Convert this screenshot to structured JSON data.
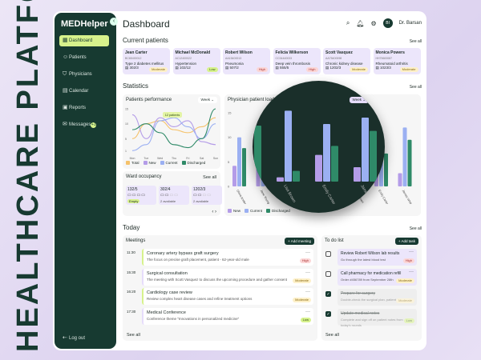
{
  "headline": "HEALTHCARE PLATFORM",
  "app": {
    "name": "MEDHelper"
  },
  "sidebar": {
    "items": [
      {
        "label": "Dashboard",
        "icon": "grid-icon",
        "active": true
      },
      {
        "label": "Patients",
        "icon": "users-icon"
      },
      {
        "label": "Physicians",
        "icon": "shield-icon"
      },
      {
        "label": "Calendar",
        "icon": "calendar-icon"
      },
      {
        "label": "Reports",
        "icon": "report-icon"
      },
      {
        "label": "Messages",
        "icon": "message-icon",
        "badge": "+1"
      }
    ],
    "logout": "Log out"
  },
  "header": {
    "title": "Dashboard",
    "user_initials": "BI",
    "user_name": "Dr. Barsan"
  },
  "current_patients": {
    "title": "Current patients",
    "see_all": "See all",
    "items": [
      {
        "name": "Jean Carter",
        "id": "BC65400012",
        "diagnosis": "Type 2 diabetes mellitus",
        "room": "302/3",
        "severity": "Moderate"
      },
      {
        "name": "Michael McDonald",
        "id": "AC12400022",
        "diagnosis": "Hypertension",
        "room": "102/12",
        "severity": "Low"
      },
      {
        "name": "Robert Wilson",
        "id": "AA15400013",
        "diagnosis": "Pneumonia",
        "room": "507/2",
        "severity": "High"
      },
      {
        "name": "Felicia Wilkerson",
        "id": "CC34440033",
        "diagnosis": "Deep vein thrombosis",
        "room": "555/5",
        "severity": "High"
      },
      {
        "name": "Scott Vasquez",
        "id": "AA75400098",
        "diagnosis": "Chronic kidney disease",
        "room": "1202/3",
        "severity": "Moderate"
      },
      {
        "name": "Monica Powers",
        "id": "HH75600087",
        "diagnosis": "Rheumatoid arthritis",
        "room": "1023/3",
        "severity": "Moderate"
      }
    ]
  },
  "statistics": {
    "title": "Statistics",
    "see_all": "See all"
  },
  "chart_data": [
    {
      "type": "line",
      "title": "Patients performance",
      "period": "Week",
      "categories": [
        "Mon",
        "Tue",
        "Wed",
        "Thu",
        "Fri",
        "Sat",
        "Sun"
      ],
      "ylim": [
        0,
        15
      ],
      "yticks": [
        1,
        5,
        10,
        15
      ],
      "tooltip": "12 patients",
      "series": [
        {
          "name": "Total",
          "color": "#f5c26b",
          "values": [
            5,
            10,
            11,
            8,
            7,
            9,
            12
          ]
        },
        {
          "name": "New",
          "color": "#b49ce8",
          "values": [
            13,
            5,
            12,
            9,
            11,
            4,
            3
          ]
        },
        {
          "name": "Current",
          "color": "#9bb0f2",
          "values": [
            1,
            3,
            11,
            12,
            9,
            5,
            10
          ]
        },
        {
          "name": "Discharged",
          "color": "#2f8a68",
          "values": [
            8,
            10,
            7,
            3,
            2,
            5,
            15
          ]
        }
      ]
    },
    {
      "type": "bar",
      "title": "Physician patient load",
      "period": "Week",
      "ylim": [
        0,
        15
      ],
      "yticks": [
        0,
        5,
        10,
        15
      ],
      "categories": [
        "Olivia Anderson",
        "Jane Young",
        "Sara Ford",
        "Andrew Robinson",
        "Zoe Gray",
        "Lisa Brown",
        "Emily Carter",
        "James White"
      ],
      "series": [
        {
          "name": "New",
          "color": "#b49ce8",
          "values": [
            4.2,
            5.5,
            7.8,
            5.2,
            1.5,
            0.8,
            5,
            2.7
          ]
        },
        {
          "name": "Current",
          "color": "#9bb0f2",
          "values": [
            10,
            7.8,
            3.8,
            11.5,
            3.8,
            13.3,
            10.8,
            12
          ]
        },
        {
          "name": "Discharged",
          "color": "#2f8a68",
          "values": [
            7.8,
            3.2,
            12.3,
            6.5,
            10.5,
            2,
            6.7,
            9.5
          ]
        }
      ]
    }
  ],
  "ward": {
    "title": "Ward occupancy",
    "see_all": "See all",
    "items": [
      {
        "room": "132/5",
        "status": "Empty",
        "beds_taken": 4
      },
      {
        "room": "302/4",
        "status": "2 available",
        "beds_taken": 2
      },
      {
        "room": "1202/3",
        "status": "2 available",
        "beds_taken": 2
      }
    ]
  },
  "today": {
    "title": "Today",
    "see_all": "See all"
  },
  "meetings": {
    "title": "Meetings",
    "add": "+ Add meeting",
    "see_all": "See all",
    "items": [
      {
        "time": "11:30",
        "title": "Coronary artery bypass graft surgery",
        "desc": "The focus on precise graft placement, patient - 62-year-old male",
        "priority": "High"
      },
      {
        "time": "15:30",
        "title": "Surgical consultation",
        "desc": "The meeting with Scott Vasquez to discuss the upcoming procedure and gather consent",
        "priority": "Moderate"
      },
      {
        "time": "16:20",
        "title": "Cardiology case review",
        "desc": "Review complex heart disease cases and refine treatment options",
        "priority": "Moderate"
      },
      {
        "time": "17:30",
        "title": "Medical Conference",
        "desc": "Conference theme \"Innovations in personalized medicine\"",
        "priority": "Low"
      }
    ]
  },
  "todo": {
    "title": "To do list",
    "add": "+ Add task",
    "see_all": "See all",
    "items": [
      {
        "title": "Review Robert Wilson lab results",
        "desc": "Go through the latest blood test",
        "priority": "High",
        "done": false
      },
      {
        "title": "Call pharmacy for medication refill",
        "desc": "Order #456789 from September 28th",
        "priority": "Moderate",
        "done": false
      },
      {
        "title": "Prepare for surgery",
        "desc": "Double-check the surgical plan, patient history",
        "priority": "Moderate",
        "done": true
      },
      {
        "title": "Update medical notes",
        "desc": "Complete and sign off on patient notes from today's rounds",
        "priority": "Low",
        "done": true
      }
    ]
  }
}
